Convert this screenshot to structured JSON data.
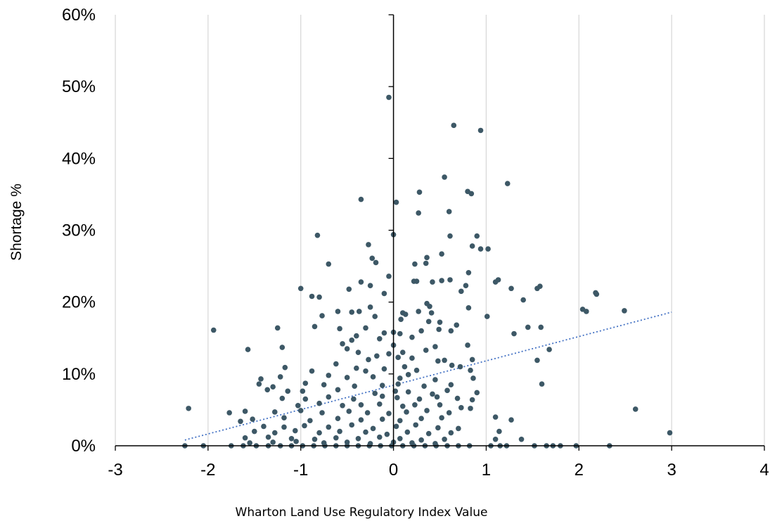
{
  "chart_data": {
    "type": "scatter",
    "title": "",
    "xlabel": "Wharton Land Use Regulatory Index Value",
    "ylabel": "Shortage %",
    "xlim": [
      -3,
      4
    ],
    "ylim": [
      0,
      60
    ],
    "x_ticks": [
      -3,
      -2,
      -1,
      0,
      1,
      2,
      3,
      4
    ],
    "y_ticks": [
      0,
      10,
      20,
      30,
      40,
      50,
      60
    ],
    "x_tick_labels": [
      "-3",
      "-2",
      "-1",
      "0",
      "1",
      "2",
      "3",
      "4"
    ],
    "y_tick_labels": [
      "0%",
      "10%",
      "20%",
      "30%",
      "40%",
      "50%",
      "60%"
    ],
    "grid": "vertical",
    "colors": {
      "points": "#3d5866",
      "trendline": "#4472c4",
      "grid": "#d9d9d9",
      "axis": "#000000"
    },
    "trendline": {
      "style": "dotted",
      "x": [
        -2.25,
        3.0
      ],
      "y": [
        0.8,
        18.6
      ]
    },
    "series": [
      {
        "points": [
          [
            -0.05,
            48.5
          ],
          [
            0.65,
            44.6
          ],
          [
            0.94,
            43.9
          ],
          [
            1.23,
            36.5
          ],
          [
            0.55,
            37.4
          ],
          [
            0.8,
            35.4
          ],
          [
            0.84,
            35.1
          ],
          [
            0.28,
            35.3
          ],
          [
            0.03,
            33.9
          ],
          [
            -0.35,
            34.3
          ],
          [
            0.27,
            32.4
          ],
          [
            0.6,
            32.6
          ],
          [
            -0.82,
            29.3
          ],
          [
            0.0,
            29.4
          ],
          [
            0.61,
            29.2
          ],
          [
            0.9,
            29.2
          ],
          [
            -0.27,
            28.0
          ],
          [
            0.85,
            27.8
          ],
          [
            0.94,
            27.4
          ],
          [
            1.02,
            27.4
          ],
          [
            0.52,
            26.7
          ],
          [
            -0.23,
            26.1
          ],
          [
            0.36,
            26.2
          ],
          [
            0.35,
            25.4
          ],
          [
            -0.7,
            25.3
          ],
          [
            -0.19,
            25.5
          ],
          [
            0.23,
            25.3
          ],
          [
            0.81,
            24.1
          ],
          [
            -0.05,
            23.6
          ],
          [
            0.52,
            23.0
          ],
          [
            0.61,
            23.1
          ],
          [
            1.1,
            22.8
          ],
          [
            1.13,
            23.1
          ],
          [
            -0.35,
            22.8
          ],
          [
            -0.25,
            22.3
          ],
          [
            0.22,
            22.9
          ],
          [
            0.25,
            22.9
          ],
          [
            0.42,
            22.8
          ],
          [
            0.78,
            22.3
          ],
          [
            1.58,
            22.2
          ],
          [
            1.55,
            21.9
          ],
          [
            -1.0,
            21.9
          ],
          [
            -0.48,
            21.8
          ],
          [
            0.73,
            21.5
          ],
          [
            1.27,
            21.9
          ],
          [
            2.18,
            21.3
          ],
          [
            2.19,
            21.1
          ],
          [
            -0.1,
            21.2
          ],
          [
            -0.88,
            20.8
          ],
          [
            -0.8,
            20.7
          ],
          [
            1.4,
            20.3
          ],
          [
            0.36,
            19.8
          ],
          [
            0.39,
            19.4
          ],
          [
            0.81,
            19.2
          ],
          [
            2.04,
            19.0
          ],
          [
            2.08,
            18.7
          ],
          [
            2.49,
            18.8
          ],
          [
            -0.6,
            18.7
          ],
          [
            -0.45,
            18.6
          ],
          [
            -0.37,
            18.7
          ],
          [
            -0.25,
            19.3
          ],
          [
            0.1,
            18.5
          ],
          [
            0.13,
            18.3
          ],
          [
            0.27,
            18.7
          ],
          [
            0.41,
            18.5
          ],
          [
            1.01,
            18.0
          ],
          [
            -0.77,
            18.1
          ],
          [
            -0.2,
            18.0
          ],
          [
            0.08,
            17.6
          ],
          [
            0.38,
            17.3
          ],
          [
            0.5,
            17.2
          ],
          [
            0.68,
            16.8
          ],
          [
            -1.94,
            16.1
          ],
          [
            -1.25,
            16.4
          ],
          [
            -0.85,
            16.6
          ],
          [
            -0.58,
            16.3
          ],
          [
            -0.3,
            16.4
          ],
          [
            0.0,
            15.8
          ],
          [
            0.07,
            15.6
          ],
          [
            0.3,
            16.0
          ],
          [
            0.49,
            16.2
          ],
          [
            0.62,
            16.0
          ],
          [
            1.45,
            16.5
          ],
          [
            1.59,
            16.5
          ],
          [
            -0.1,
            15.7
          ],
          [
            -0.15,
            14.9
          ],
          [
            -0.4,
            15.3
          ],
          [
            -0.45,
            14.7
          ],
          [
            -0.55,
            14.2
          ],
          [
            0.2,
            15.1
          ],
          [
            1.3,
            15.6
          ],
          [
            -1.57,
            13.4
          ],
          [
            -1.2,
            13.7
          ],
          [
            -0.5,
            13.5
          ],
          [
            -0.38,
            13.0
          ],
          [
            0.0,
            14.0
          ],
          [
            0.1,
            13.0
          ],
          [
            0.35,
            13.3
          ],
          [
            0.45,
            13.8
          ],
          [
            0.8,
            14.0
          ],
          [
            1.68,
            13.4
          ],
          [
            -0.05,
            12.8
          ],
          [
            -0.18,
            12.5
          ],
          [
            -0.27,
            12.0
          ],
          [
            0.05,
            12.3
          ],
          [
            0.2,
            12.2
          ],
          [
            0.48,
            11.8
          ],
          [
            0.55,
            11.9
          ],
          [
            0.85,
            12.0
          ],
          [
            1.55,
            11.9
          ],
          [
            -1.17,
            10.9
          ],
          [
            -0.62,
            11.4
          ],
          [
            -0.4,
            10.8
          ],
          [
            -0.3,
            10.4
          ],
          [
            -0.1,
            10.7
          ],
          [
            0.12,
            11.0
          ],
          [
            0.25,
            10.5
          ],
          [
            0.63,
            11.2
          ],
          [
            0.72,
            11.0
          ],
          [
            0.83,
            10.5
          ],
          [
            -1.43,
            9.3
          ],
          [
            -1.22,
            9.6
          ],
          [
            -0.88,
            10.4
          ],
          [
            -0.7,
            9.8
          ],
          [
            -0.5,
            9.5
          ],
          [
            -0.22,
            9.6
          ],
          [
            0.07,
            9.4
          ],
          [
            0.16,
            9.9
          ],
          [
            0.45,
            9.2
          ],
          [
            0.86,
            9.4
          ],
          [
            -1.45,
            8.6
          ],
          [
            -1.3,
            8.2
          ],
          [
            -0.95,
            8.7
          ],
          [
            -0.75,
            8.5
          ],
          [
            -0.42,
            8.3
          ],
          [
            -0.12,
            8.4
          ],
          [
            0.05,
            8.6
          ],
          [
            0.33,
            8.3
          ],
          [
            0.62,
            8.5
          ],
          [
            1.6,
            8.6
          ],
          [
            -1.36,
            7.8
          ],
          [
            -1.14,
            7.6
          ],
          [
            -0.98,
            7.6
          ],
          [
            -0.6,
            7.8
          ],
          [
            -0.2,
            7.3
          ],
          [
            0.02,
            7.6
          ],
          [
            0.16,
            7.5
          ],
          [
            0.42,
            7.2
          ],
          [
            0.58,
            7.7
          ],
          [
            0.9,
            7.4
          ],
          [
            -1.2,
            6.6
          ],
          [
            -0.95,
            6.5
          ],
          [
            -0.7,
            6.8
          ],
          [
            -0.43,
            6.5
          ],
          [
            -0.12,
            6.9
          ],
          [
            0.04,
            6.7
          ],
          [
            0.28,
            6.5
          ],
          [
            0.47,
            6.8
          ],
          [
            0.69,
            6.6
          ],
          [
            0.85,
            6.4
          ],
          [
            -1.03,
            5.6
          ],
          [
            -0.8,
            5.9
          ],
          [
            -0.55,
            5.6
          ],
          [
            -0.35,
            5.7
          ],
          [
            -0.15,
            5.8
          ],
          [
            0.1,
            5.5
          ],
          [
            0.23,
            5.7
          ],
          [
            0.5,
            5.7
          ],
          [
            0.73,
            5.3
          ],
          [
            0.83,
            5.2
          ],
          [
            2.61,
            5.1
          ],
          [
            -2.21,
            5.2
          ],
          [
            -1.6,
            4.8
          ],
          [
            -1.28,
            4.7
          ],
          [
            -1.0,
            4.9
          ],
          [
            -0.77,
            4.6
          ],
          [
            -0.48,
            4.8
          ],
          [
            -0.28,
            4.6
          ],
          [
            -0.05,
            4.5
          ],
          [
            0.14,
            4.7
          ],
          [
            0.36,
            4.9
          ],
          [
            0.6,
            4.6
          ],
          [
            1.1,
            4.0
          ],
          [
            1.27,
            3.6
          ],
          [
            -1.77,
            4.6
          ],
          [
            -1.52,
            3.7
          ],
          [
            -1.18,
            3.9
          ],
          [
            -0.9,
            3.5
          ],
          [
            -0.6,
            3.8
          ],
          [
            -0.35,
            3.6
          ],
          [
            -0.12,
            3.7
          ],
          [
            0.07,
            3.5
          ],
          [
            0.3,
            3.8
          ],
          [
            0.52,
            3.9
          ],
          [
            -1.65,
            3.4
          ],
          [
            -1.4,
            2.7
          ],
          [
            -1.18,
            2.6
          ],
          [
            -0.96,
            2.8
          ],
          [
            -0.7,
            2.6
          ],
          [
            -0.45,
            2.9
          ],
          [
            -0.22,
            2.4
          ],
          [
            0.03,
            2.7
          ],
          [
            0.24,
            2.9
          ],
          [
            0.48,
            2.5
          ],
          [
            0.7,
            2.4
          ],
          [
            1.14,
            2.0
          ],
          [
            -1.5,
            2.0
          ],
          [
            -1.28,
            1.8
          ],
          [
            -1.06,
            2.1
          ],
          [
            -0.8,
            1.8
          ],
          [
            -0.58,
            2.0
          ],
          [
            -0.3,
            1.9
          ],
          [
            -0.07,
            1.6
          ],
          [
            0.15,
            1.9
          ],
          [
            0.38,
            1.7
          ],
          [
            0.62,
            1.8
          ],
          [
            2.98,
            1.8
          ],
          [
            -1.6,
            1.1
          ],
          [
            -1.35,
            1.2
          ],
          [
            -1.1,
            1.0
          ],
          [
            -0.85,
            0.9
          ],
          [
            -0.62,
            1.1
          ],
          [
            -0.38,
            1.0
          ],
          [
            -0.15,
            1.2
          ],
          [
            0.07,
            1.0
          ],
          [
            0.3,
            0.8
          ],
          [
            0.55,
            0.9
          ],
          [
            1.1,
            0.9
          ],
          [
            1.38,
            0.9
          ],
          [
            -1.55,
            0.4
          ],
          [
            -1.3,
            0.5
          ],
          [
            -1.05,
            0.6
          ],
          [
            -0.75,
            0.4
          ],
          [
            -0.5,
            0.5
          ],
          [
            -0.25,
            0.3
          ],
          [
            0.0,
            0.5
          ],
          [
            0.2,
            0.4
          ],
          [
            0.45,
            0.3
          ],
          [
            -2.25,
            0.0
          ],
          [
            -2.05,
            0.0
          ],
          [
            -1.75,
            0.0
          ],
          [
            -1.62,
            0.0
          ],
          [
            -1.48,
            0.0
          ],
          [
            -1.35,
            0.0
          ],
          [
            -1.22,
            0.0
          ],
          [
            -1.1,
            0.0
          ],
          [
            -0.98,
            0.0
          ],
          [
            -0.86,
            0.0
          ],
          [
            -0.74,
            0.0
          ],
          [
            -0.62,
            0.0
          ],
          [
            -0.5,
            0.0
          ],
          [
            -0.38,
            0.0
          ],
          [
            -0.26,
            0.0
          ],
          [
            -0.14,
            0.0
          ],
          [
            -0.02,
            0.0
          ],
          [
            0.1,
            0.0
          ],
          [
            0.22,
            0.0
          ],
          [
            0.34,
            0.0
          ],
          [
            0.46,
            0.0
          ],
          [
            0.58,
            0.0
          ],
          [
            0.7,
            0.0
          ],
          [
            0.82,
            0.0
          ],
          [
            1.05,
            0.0
          ],
          [
            1.15,
            0.0
          ],
          [
            1.22,
            0.0
          ],
          [
            1.52,
            0.0
          ],
          [
            1.65,
            0.0
          ],
          [
            1.72,
            0.0
          ],
          [
            1.8,
            0.0
          ],
          [
            1.97,
            0.0
          ],
          [
            2.33,
            0.0
          ]
        ]
      }
    ]
  }
}
